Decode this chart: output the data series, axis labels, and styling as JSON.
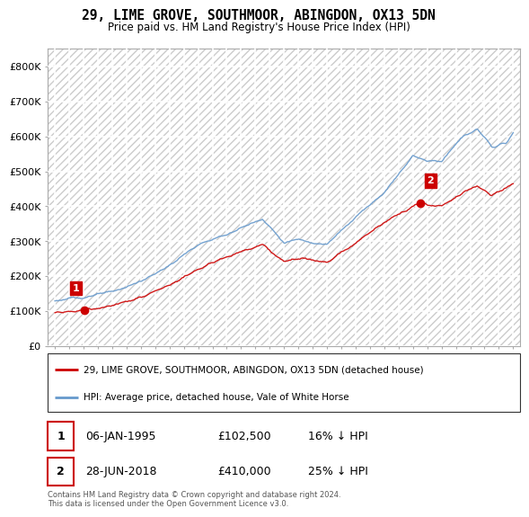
{
  "title": "29, LIME GROVE, SOUTHMOOR, ABINGDON, OX13 5DN",
  "subtitle": "Price paid vs. HM Land Registry's House Price Index (HPI)",
  "legend_line1": "29, LIME GROVE, SOUTHMOOR, ABINGDON, OX13 5DN (detached house)",
  "legend_line2": "HPI: Average price, detached house, Vale of White Horse",
  "point1_date": "06-JAN-1995",
  "point1_price": "£102,500",
  "point1_hpi": "16% ↓ HPI",
  "point2_date": "28-JUN-2018",
  "point2_price": "£410,000",
  "point2_hpi": "25% ↓ HPI",
  "footer": "Contains HM Land Registry data © Crown copyright and database right 2024.\nThis data is licensed under the Open Government Licence v3.0.",
  "ylim": [
    0,
    850000
  ],
  "yticks": [
    0,
    100000,
    200000,
    300000,
    400000,
    500000,
    600000,
    700000,
    800000
  ],
  "ytick_labels": [
    "£0",
    "£100K",
    "£200K",
    "£300K",
    "£400K",
    "£500K",
    "£600K",
    "£700K",
    "£800K"
  ],
  "bg_color": "#ffffff",
  "grid_color": "#ffffff",
  "red_color": "#cc0000",
  "blue_color": "#6699cc",
  "sale1_x": 1995.04,
  "sale1_y": 102500,
  "sale2_x": 2018.49,
  "sale2_y": 410000,
  "xmin": 1993,
  "xmax": 2025
}
